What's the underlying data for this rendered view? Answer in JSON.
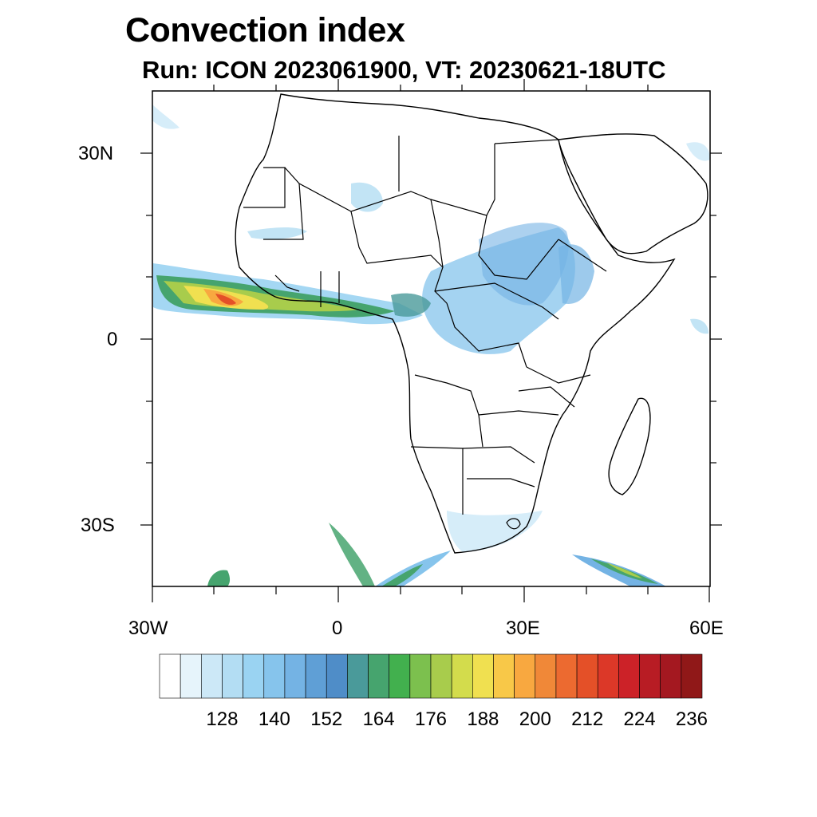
{
  "header": {
    "title": "Convection index",
    "subtitle": "Run: ICON 2023061900,  VT: 20230621-18UTC"
  },
  "map": {
    "region": "Africa",
    "lon_range": [
      -30,
      60
    ],
    "lat_range": [
      -40,
      40
    ],
    "lat_tick_labels": [
      "30N",
      "0",
      "30S"
    ],
    "lon_tick_labels": [
      "30W",
      "0",
      "30E",
      "60E"
    ],
    "land_color": "#ffffff",
    "boundary_color": "#000000"
  },
  "colorbar": {
    "levels": [
      "128",
      "140",
      "152",
      "164",
      "176",
      "188",
      "200",
      "212",
      "224",
      "236"
    ],
    "colors": [
      "#ffffff",
      "#e6f4fb",
      "#cce8f7",
      "#b3ddf3",
      "#9ad3f2",
      "#86c4ec",
      "#74b3e4",
      "#5f9fd6",
      "#4f8dc8",
      "#4a9a9a",
      "#46a46e",
      "#42b04e",
      "#7cc04e",
      "#a8cc4c",
      "#d3dc4c",
      "#f0e050",
      "#f8c848",
      "#f8a840",
      "#f08838",
      "#ec6a30",
      "#e45028",
      "#dc3828",
      "#cc2228",
      "#b81c24",
      "#a41820",
      "#901818"
    ]
  }
}
